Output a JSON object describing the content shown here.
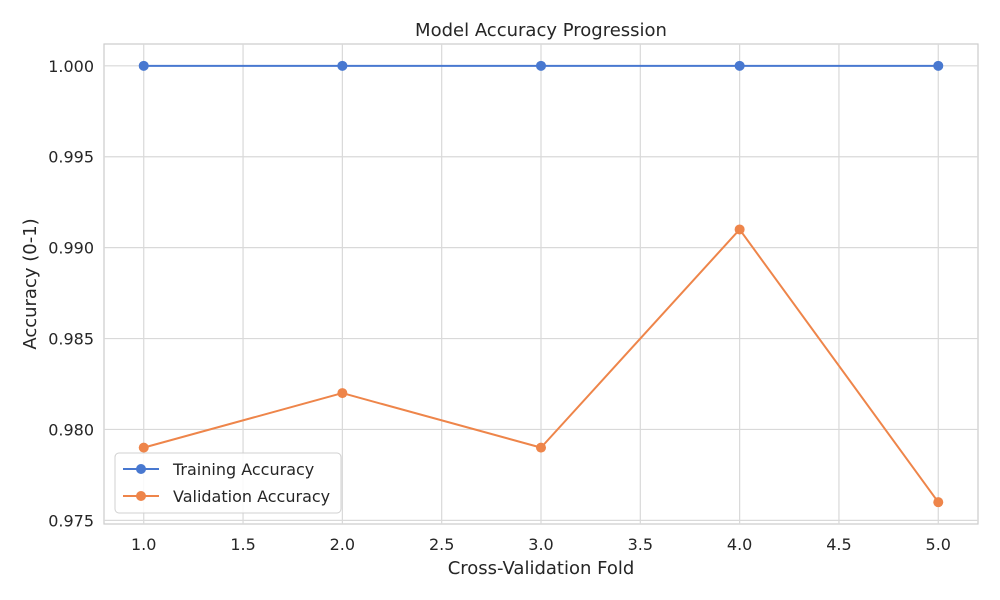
{
  "chart_data": {
    "type": "line",
    "title": "Model Accuracy Progression",
    "xlabel": "Cross-Validation Fold",
    "ylabel": "Accuracy (0-1)",
    "x": [
      1.0,
      2.0,
      3.0,
      4.0,
      5.0
    ],
    "xlim": [
      0.8,
      5.2
    ],
    "ylim": [
      0.9748,
      1.0012
    ],
    "xticks": [
      1.0,
      1.5,
      2.0,
      2.5,
      3.0,
      3.5,
      4.0,
      4.5,
      5.0
    ],
    "xtick_labels": [
      "1.0",
      "1.5",
      "2.0",
      "2.5",
      "3.0",
      "3.5",
      "4.0",
      "4.5",
      "5.0"
    ],
    "yticks": [
      0.975,
      0.98,
      0.985,
      0.99,
      0.995,
      1.0
    ],
    "ytick_labels": [
      "0.975",
      "0.980",
      "0.985",
      "0.990",
      "0.995",
      "1.000"
    ],
    "grid": true,
    "legend_position": "lower-left",
    "series": [
      {
        "name": "Training Accuracy",
        "color": "#4878d0",
        "marker": "circle",
        "values": [
          1.0,
          1.0,
          1.0,
          1.0,
          1.0
        ]
      },
      {
        "name": "Validation Accuracy",
        "color": "#ee854a",
        "marker": "circle",
        "values": [
          0.979,
          0.982,
          0.979,
          0.991,
          0.976
        ]
      }
    ]
  }
}
